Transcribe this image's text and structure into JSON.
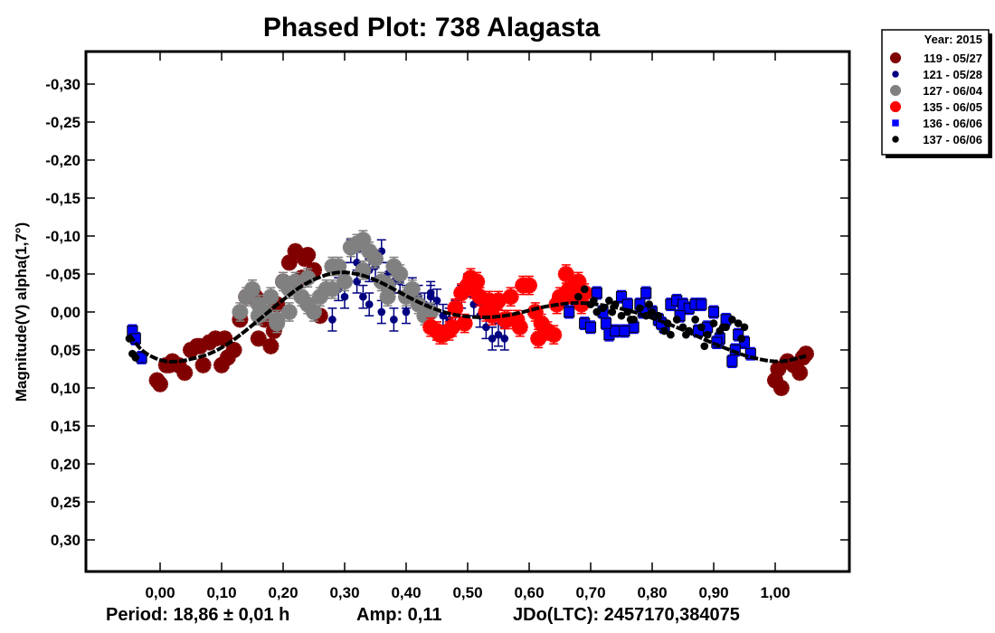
{
  "chart_data": {
    "type": "scatter",
    "title": "Phased Plot: 738 Alagasta",
    "xlabel": "",
    "ylabel": "Magnitude(V) alpha(1,7°)",
    "xlim": [
      -0.12,
      1.12
    ],
    "ylim": [
      -0.345,
      0.34
    ],
    "y_inverted": true,
    "grid": false,
    "x_ticks": [
      0.0,
      0.1,
      0.2,
      0.3,
      0.4,
      0.5,
      0.6,
      0.7,
      0.8,
      0.9,
      1.0
    ],
    "x_tick_labels": [
      "0,00",
      "0,10",
      "0,20",
      "0,30",
      "0,40",
      "0,50",
      "0,60",
      "0,70",
      "0,80",
      "0,90",
      "1,00"
    ],
    "y_ticks": [
      -0.3,
      -0.25,
      -0.2,
      -0.15,
      -0.1,
      -0.05,
      0.0,
      0.05,
      0.1,
      0.15,
      0.2,
      0.25,
      0.3
    ],
    "y_tick_labels": [
      "-0,30",
      "-0,25",
      "-0,20",
      "-0,15",
      "-0,10",
      "-0,05",
      "0,00",
      "0,05",
      "0,10",
      "0,15",
      "0,20",
      "0,25",
      "0,30"
    ],
    "legend": {
      "placement": "outside-top-right",
      "title": "Year: 2015",
      "entries": [
        {
          "label": "119 - 05/27",
          "marker": "asterisk",
          "color": "#800000"
        },
        {
          "label": "121 - 05/28",
          "marker": "circle",
          "color": "#000080"
        },
        {
          "label": "127 - 06/04",
          "marker": "asterisk",
          "color": "#808080"
        },
        {
          "label": "135 - 06/05",
          "marker": "asterisk",
          "color": "#ff0000"
        },
        {
          "label": "136 - 06/06",
          "marker": "square",
          "color": "#0000ff"
        },
        {
          "label": "137 - 06/06",
          "marker": "circle",
          "color": "#000000"
        }
      ]
    },
    "series": [
      {
        "name": "119 - 05/27",
        "marker": "asterisk",
        "color": "#800000",
        "err": 0.008,
        "x": [
          -0.005,
          0.0,
          0.01,
          0.02,
          0.03,
          0.04,
          0.05,
          0.06,
          0.07,
          0.08,
          0.09,
          0.1,
          0.11,
          0.12,
          0.13,
          0.14,
          0.15,
          0.16,
          0.17,
          0.18,
          0.19,
          0.2,
          0.21,
          0.22,
          0.23,
          0.24,
          0.25,
          0.26,
          0.015,
          0.065,
          0.105,
          0.155,
          0.185,
          0.235,
          1.0,
          1.01,
          1.02,
          1.03,
          1.04,
          1.05,
          1.005,
          1.045
        ],
        "y": [
          0.09,
          0.095,
          0.07,
          0.065,
          0.07,
          0.08,
          0.05,
          0.045,
          0.07,
          0.04,
          0.035,
          0.07,
          0.06,
          0.05,
          0.01,
          -0.02,
          -0.02,
          0.035,
          0.01,
          0.045,
          -0.01,
          -0.04,
          -0.065,
          -0.08,
          -0.045,
          -0.075,
          -0.055,
          0.005,
          0.07,
          0.045,
          0.035,
          -0.02,
          0.025,
          -0.07,
          0.09,
          0.1,
          0.065,
          0.07,
          0.08,
          0.055,
          0.075,
          0.06
        ]
      },
      {
        "name": "121 - 05/28",
        "marker": "circle",
        "color": "#000080",
        "err": 0.015,
        "x": [
          0.28,
          0.29,
          0.3,
          0.31,
          0.32,
          0.33,
          0.34,
          0.35,
          0.36,
          0.37,
          0.38,
          0.39,
          0.4,
          0.41,
          0.42,
          0.43,
          0.44,
          0.45,
          0.46,
          0.47,
          0.48,
          0.49,
          0.5,
          0.51,
          0.52,
          0.53,
          0.54,
          0.55,
          0.56,
          0.3,
          0.32,
          0.34,
          0.36,
          0.38,
          0.4,
          0.44
        ],
        "y": [
          0.01,
          -0.03,
          -0.05,
          -0.08,
          -0.065,
          -0.02,
          -0.055,
          -0.06,
          -0.08,
          -0.05,
          -0.04,
          -0.04,
          -0.02,
          -0.03,
          -0.02,
          -0.01,
          -0.02,
          -0.015,
          0.005,
          0.01,
          0.0,
          -0.02,
          -0.035,
          -0.01,
          0.005,
          0.02,
          0.035,
          0.03,
          0.035,
          -0.02,
          -0.04,
          -0.01,
          0.0,
          0.01,
          0.0,
          -0.025
        ]
      },
      {
        "name": "127 - 06/04",
        "marker": "asterisk",
        "color": "#808080",
        "err": 0.012,
        "x": [
          0.13,
          0.14,
          0.15,
          0.16,
          0.17,
          0.18,
          0.19,
          0.2,
          0.21,
          0.22,
          0.23,
          0.24,
          0.25,
          0.26,
          0.27,
          0.28,
          0.29,
          0.3,
          0.31,
          0.32,
          0.33,
          0.34,
          0.35,
          0.36,
          0.37,
          0.38,
          0.39,
          0.4,
          0.41,
          0.42,
          0.43,
          0.44,
          0.45,
          0.16,
          0.19,
          0.21,
          0.24,
          0.28,
          0.33,
          0.37
        ],
        "y": [
          0.0,
          -0.02,
          -0.03,
          -0.01,
          0.0,
          -0.02,
          0.015,
          -0.04,
          -0.03,
          -0.04,
          -0.02,
          -0.01,
          0.0,
          -0.02,
          -0.03,
          -0.06,
          -0.06,
          -0.04,
          -0.085,
          -0.09,
          -0.095,
          -0.08,
          -0.07,
          -0.04,
          -0.035,
          -0.06,
          -0.05,
          -0.02,
          -0.03,
          -0.01,
          0.005,
          0.0,
          0.025,
          0.005,
          0.01,
          0.0,
          -0.045,
          -0.03,
          -0.055,
          -0.02
        ]
      },
      {
        "name": "135 - 06/05",
        "marker": "asterisk",
        "color": "#ff0000",
        "err": 0.012,
        "x": [
          0.44,
          0.45,
          0.46,
          0.47,
          0.48,
          0.49,
          0.5,
          0.51,
          0.52,
          0.53,
          0.54,
          0.55,
          0.56,
          0.57,
          0.58,
          0.59,
          0.6,
          0.61,
          0.62,
          0.63,
          0.64,
          0.65,
          0.66,
          0.67,
          0.68,
          0.69,
          0.455,
          0.475,
          0.495,
          0.515,
          0.535,
          0.565,
          0.585,
          0.615,
          0.645,
          0.665,
          0.685,
          0.505,
          0.545
        ],
        "y": [
          0.02,
          0.025,
          0.03,
          0.025,
          -0.005,
          -0.025,
          -0.035,
          -0.03,
          -0.02,
          0.0,
          0.005,
          -0.015,
          0.01,
          -0.02,
          0.01,
          -0.035,
          -0.035,
          0.0,
          0.015,
          0.025,
          0.03,
          -0.02,
          -0.05,
          -0.02,
          -0.04,
          -0.025,
          0.03,
          0.02,
          0.015,
          -0.04,
          -0.015,
          0.01,
          0.02,
          0.035,
          -0.01,
          -0.03,
          -0.01,
          -0.045,
          -0.01
        ]
      },
      {
        "name": "136 - 06/06",
        "marker": "square",
        "color": "#0000ff",
        "err": 0.008,
        "x": [
          -0.045,
          -0.04,
          -0.03,
          0.69,
          0.7,
          0.71,
          0.72,
          0.73,
          0.74,
          0.75,
          0.76,
          0.77,
          0.78,
          0.79,
          0.8,
          0.81,
          0.82,
          0.83,
          0.84,
          0.85,
          0.86,
          0.87,
          0.88,
          0.89,
          0.9,
          0.91,
          0.92,
          0.93,
          0.94,
          0.95,
          0.96,
          0.725,
          0.755,
          0.785,
          0.815,
          0.845,
          0.875,
          0.905,
          0.935,
          0.665
        ],
        "y": [
          0.025,
          0.035,
          0.06,
          0.015,
          0.02,
          -0.025,
          0.0,
          0.03,
          0.025,
          -0.02,
          -0.01,
          0.02,
          -0.01,
          -0.025,
          0.0,
          0.01,
          0.02,
          -0.01,
          -0.015,
          -0.01,
          -0.005,
          -0.01,
          -0.01,
          0.02,
          0.0,
          0.035,
          0.01,
          0.065,
          0.03,
          0.04,
          0.055,
          0.015,
          0.025,
          0.0,
          0.015,
          0.005,
          0.025,
          0.04,
          0.05,
          0.0
        ]
      },
      {
        "name": "137 - 06/06",
        "marker": "circle",
        "color": "#000000",
        "err": 0.0,
        "x": [
          -0.05,
          -0.045,
          -0.04,
          0.68,
          0.69,
          0.7,
          0.71,
          0.72,
          0.73,
          0.74,
          0.75,
          0.76,
          0.77,
          0.78,
          0.79,
          0.8,
          0.81,
          0.82,
          0.83,
          0.84,
          0.85,
          0.86,
          0.87,
          0.88,
          0.89,
          0.9,
          0.91,
          0.92,
          0.93,
          0.94,
          0.95,
          0.705,
          0.735,
          0.765,
          0.795,
          0.825,
          0.855,
          0.885,
          0.915,
          0.945
        ],
        "y": [
          0.035,
          0.055,
          0.06,
          -0.02,
          -0.03,
          -0.01,
          0.0,
          -0.005,
          -0.015,
          -0.01,
          0.005,
          0.0,
          0.01,
          -0.005,
          0.005,
          0.0,
          0.005,
          0.025,
          0.03,
          0.01,
          0.02,
          0.025,
          0.01,
          0.02,
          0.03,
          0.015,
          0.025,
          0.02,
          0.01,
          0.015,
          0.02,
          -0.015,
          0.0,
          0.01,
          -0.01,
          0.015,
          0.03,
          0.045,
          0.02,
          0.035
        ]
      }
    ],
    "fit_curve": {
      "color": "#000000",
      "x": [
        -0.05,
        -0.03,
        -0.01,
        0.01,
        0.03,
        0.05,
        0.08,
        0.11,
        0.14,
        0.17,
        0.2,
        0.23,
        0.26,
        0.29,
        0.32,
        0.35,
        0.38,
        0.41,
        0.44,
        0.47,
        0.5,
        0.53,
        0.56,
        0.59,
        0.62,
        0.65,
        0.68,
        0.71,
        0.74,
        0.77,
        0.8,
        0.83,
        0.86,
        0.89,
        0.92,
        0.95,
        0.98,
        1.0,
        1.02,
        1.05
      ],
      "y": [
        0.03,
        0.05,
        0.06,
        0.065,
        0.065,
        0.062,
        0.055,
        0.042,
        0.024,
        0.004,
        -0.016,
        -0.034,
        -0.046,
        -0.052,
        -0.05,
        -0.042,
        -0.03,
        -0.017,
        -0.006,
        0.002,
        0.006,
        0.007,
        0.005,
        0.0,
        -0.006,
        -0.01,
        -0.012,
        -0.01,
        -0.006,
        0.0,
        0.008,
        0.017,
        0.027,
        0.038,
        0.048,
        0.057,
        0.063,
        0.065,
        0.064,
        0.058
      ]
    }
  },
  "footer": {
    "period": "Period: 18,86 ± 0,01 h",
    "amp": "Amp: 0,11",
    "jdo": "JDo(LTC): 2457170,384075"
  }
}
